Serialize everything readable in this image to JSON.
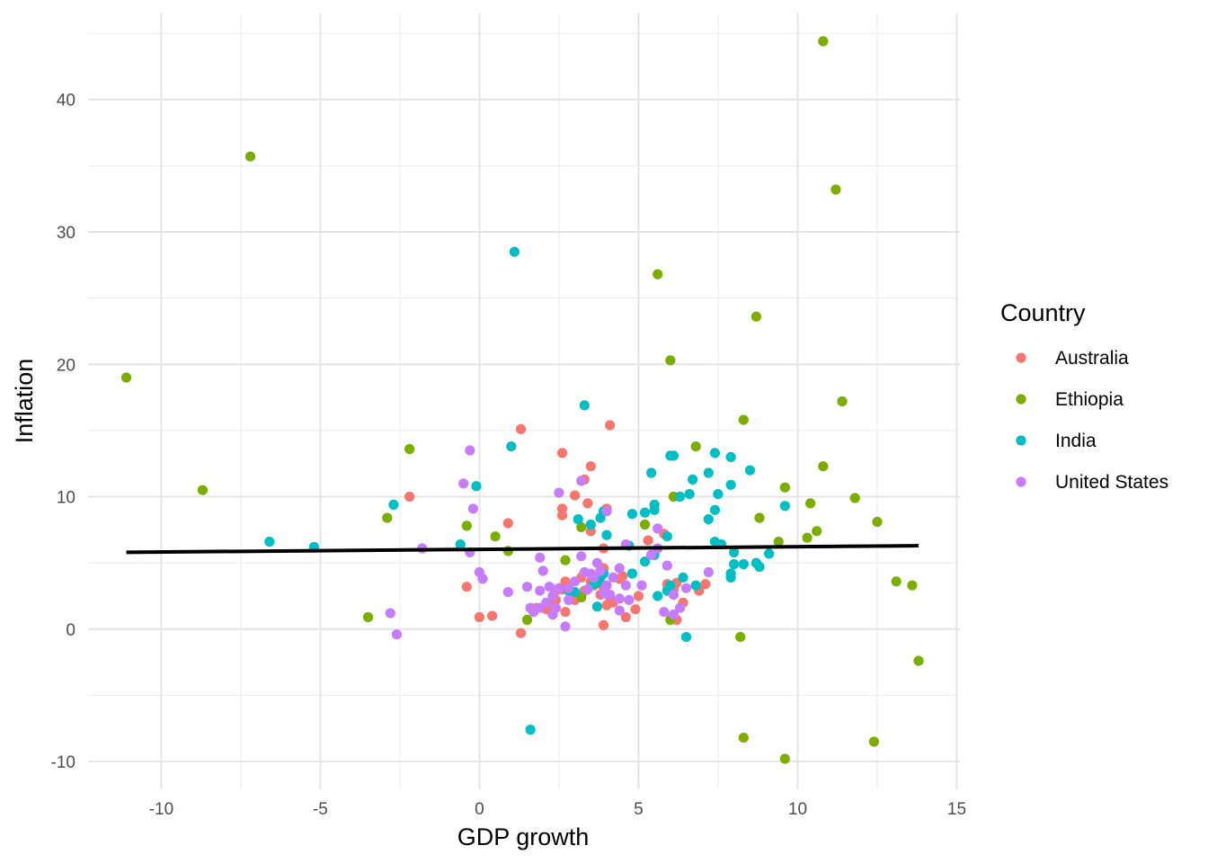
{
  "chart_data": {
    "type": "scatter",
    "xlabel": "GDP growth",
    "ylabel": "Inflation",
    "xlim": [
      -12.3,
      15.1
    ],
    "ylim": [
      -12.1,
      46.5
    ],
    "x_ticks": [
      -10,
      -5,
      0,
      5,
      10,
      15
    ],
    "x_tick_labels": [
      "-10",
      "-5",
      "0",
      "5",
      "10",
      "15"
    ],
    "y_ticks": [
      -10,
      0,
      10,
      20,
      30,
      40
    ],
    "y_tick_labels": [
      "-10",
      "0",
      "10",
      "20",
      "30",
      "40"
    ],
    "x_minor_grid": [
      -7.5,
      -2.5,
      2.5,
      7.5,
      12.5
    ],
    "y_minor_grid": [
      -5,
      5,
      15,
      25,
      35,
      45
    ],
    "grid": true,
    "legend": {
      "title": "Country",
      "placement": "right",
      "entries": [
        "Australia",
        "Ethiopia",
        "India",
        "United States"
      ]
    },
    "trend_line": {
      "color": "#000000",
      "from": [
        -11.1,
        5.8
      ],
      "to": [
        13.8,
        6.3
      ]
    },
    "series": [
      {
        "name": "Australia",
        "color": "#F8766D",
        "points": [
          [
            1.3,
            15.1
          ],
          [
            4.1,
            15.4
          ],
          [
            2.6,
            13.3
          ],
          [
            3.5,
            12.3
          ],
          [
            3.3,
            11.3
          ],
          [
            3.0,
            10.1
          ],
          [
            -2.2,
            10.0
          ],
          [
            4.0,
            9.1
          ],
          [
            3.4,
            9.5
          ],
          [
            2.6,
            9.1
          ],
          [
            2.6,
            8.6
          ],
          [
            0.9,
            8.0
          ],
          [
            3.5,
            7.4
          ],
          [
            5.8,
            7.2
          ],
          [
            5.3,
            6.7
          ],
          [
            3.9,
            6.1
          ],
          [
            -0.4,
            3.2
          ],
          [
            0.4,
            1.0
          ],
          [
            0.0,
            0.9
          ],
          [
            1.3,
            -0.3
          ],
          [
            1.8,
            1.6
          ],
          [
            2.1,
            1.5
          ],
          [
            2.4,
            2.2
          ],
          [
            2.4,
            2.9
          ],
          [
            2.6,
            3.0
          ],
          [
            2.7,
            3.6
          ],
          [
            2.8,
            3.4
          ],
          [
            2.9,
            2.7
          ],
          [
            2.7,
            1.3
          ],
          [
            3.0,
            2.2
          ],
          [
            3.3,
            2.9
          ],
          [
            3.5,
            3.6
          ],
          [
            3.6,
            3.3
          ],
          [
            3.7,
            4.0
          ],
          [
            3.8,
            2.6
          ],
          [
            3.9,
            3.2
          ],
          [
            3.9,
            4.6
          ],
          [
            4.0,
            1.8
          ],
          [
            4.1,
            2.4
          ],
          [
            4.4,
            3.8
          ],
          [
            4.5,
            4.0
          ],
          [
            4.6,
            0.9
          ],
          [
            4.9,
            1.5
          ],
          [
            5.0,
            2.5
          ],
          [
            5.9,
            3.4
          ],
          [
            6.1,
            3.0
          ],
          [
            6.2,
            0.7
          ],
          [
            6.2,
            3.5
          ],
          [
            6.4,
            2.0
          ],
          [
            6.9,
            2.9
          ],
          [
            7.1,
            3.4
          ],
          [
            3.9,
            0.3
          ],
          [
            2.3,
            1.8
          ],
          [
            4.2,
            2.0
          ],
          [
            3.2,
            3.9
          ]
        ]
      },
      {
        "name": "Ethiopia",
        "color": "#7CAE00",
        "points": [
          [
            10.8,
            44.4
          ],
          [
            -7.2,
            35.7
          ],
          [
            11.2,
            33.2
          ],
          [
            5.6,
            26.8
          ],
          [
            8.7,
            23.6
          ],
          [
            6.0,
            20.3
          ],
          [
            -11.1,
            19.0
          ],
          [
            11.4,
            17.2
          ],
          [
            8.3,
            15.8
          ],
          [
            6.8,
            13.8
          ],
          [
            -2.2,
            13.6
          ],
          [
            10.8,
            12.3
          ],
          [
            9.6,
            10.7
          ],
          [
            -8.7,
            10.5
          ],
          [
            6.1,
            10.0
          ],
          [
            11.8,
            9.9
          ],
          [
            10.4,
            9.5
          ],
          [
            8.8,
            8.4
          ],
          [
            -2.9,
            8.4
          ],
          [
            12.5,
            8.1
          ],
          [
            5.2,
            7.9
          ],
          [
            -0.4,
            7.8
          ],
          [
            3.2,
            7.7
          ],
          [
            10.6,
            7.4
          ],
          [
            0.5,
            7.0
          ],
          [
            10.3,
            6.9
          ],
          [
            9.4,
            6.6
          ],
          [
            0.9,
            5.9
          ],
          [
            2.7,
            5.2
          ],
          [
            13.1,
            3.6
          ],
          [
            13.6,
            3.3
          ],
          [
            3.2,
            2.4
          ],
          [
            -3.5,
            0.9
          ],
          [
            1.5,
            0.7
          ],
          [
            6.0,
            0.7
          ],
          [
            8.2,
            -0.6
          ],
          [
            13.8,
            -2.4
          ],
          [
            8.3,
            -8.2
          ],
          [
            12.4,
            -8.5
          ],
          [
            9.6,
            -9.8
          ]
        ]
      },
      {
        "name": "India",
        "color": "#00BFC4",
        "points": [
          [
            1.1,
            28.5
          ],
          [
            3.3,
            16.9
          ],
          [
            1.0,
            13.8
          ],
          [
            7.4,
            13.3
          ],
          [
            6.1,
            13.1
          ],
          [
            7.9,
            13.0
          ],
          [
            6.0,
            13.1
          ],
          [
            8.5,
            12.0
          ],
          [
            5.4,
            11.8
          ],
          [
            7.2,
            11.8
          ],
          [
            6.7,
            11.3
          ],
          [
            7.9,
            10.9
          ],
          [
            -0.1,
            10.8
          ],
          [
            7.5,
            10.2
          ],
          [
            6.6,
            10.2
          ],
          [
            6.3,
            10.0
          ],
          [
            -2.7,
            9.4
          ],
          [
            9.6,
            9.3
          ],
          [
            5.5,
            9.4
          ],
          [
            5.5,
            9.0
          ],
          [
            7.4,
            9.0
          ],
          [
            4.8,
            8.7
          ],
          [
            5.2,
            8.8
          ],
          [
            3.9,
            8.9
          ],
          [
            3.8,
            8.4
          ],
          [
            3.1,
            8.3
          ],
          [
            7.2,
            8.3
          ],
          [
            3.5,
            7.9
          ],
          [
            4.0,
            7.1
          ],
          [
            5.9,
            7.0
          ],
          [
            -6.6,
            6.6
          ],
          [
            7.4,
            6.6
          ],
          [
            7.6,
            6.4
          ],
          [
            -0.6,
            6.4
          ],
          [
            -5.2,
            6.2
          ],
          [
            4.7,
            6.3
          ],
          [
            8.0,
            5.8
          ],
          [
            9.1,
            5.7
          ],
          [
            5.5,
            5.6
          ],
          [
            5.2,
            5.1
          ],
          [
            8.7,
            5.0
          ],
          [
            8.0,
            4.9
          ],
          [
            8.8,
            4.7
          ],
          [
            8.3,
            4.9
          ],
          [
            3.9,
            4.2
          ],
          [
            4.8,
            4.2
          ],
          [
            7.9,
            3.9
          ],
          [
            7.9,
            4.2
          ],
          [
            3.8,
            3.9
          ],
          [
            3.7,
            3.5
          ],
          [
            6.4,
            3.9
          ],
          [
            6.0,
            3.3
          ],
          [
            6.8,
            3.3
          ],
          [
            3.0,
            2.8
          ],
          [
            5.6,
            2.5
          ],
          [
            3.7,
            1.7
          ],
          [
            5.9,
            2.9
          ],
          [
            6.5,
            -0.6
          ],
          [
            1.6,
            -7.6
          ],
          [
            3.6,
            3.4
          ],
          [
            2.8,
            2.9
          ]
        ]
      },
      {
        "name": "United States",
        "color": "#C77CFF",
        "points": [
          [
            -0.3,
            13.5
          ],
          [
            3.2,
            11.2
          ],
          [
            -0.5,
            11.0
          ],
          [
            2.5,
            10.3
          ],
          [
            -0.2,
            9.1
          ],
          [
            4.0,
            8.9
          ],
          [
            5.6,
            7.6
          ],
          [
            4.6,
            6.4
          ],
          [
            5.6,
            6.1
          ],
          [
            -1.8,
            6.1
          ],
          [
            -0.3,
            5.8
          ],
          [
            1.9,
            5.4
          ],
          [
            3.2,
            5.5
          ],
          [
            3.7,
            5.0
          ],
          [
            4.4,
            4.6
          ],
          [
            5.4,
            5.6
          ],
          [
            2.0,
            4.4
          ],
          [
            3.3,
            4.3
          ],
          [
            3.5,
            4.2
          ],
          [
            3.8,
            4.4
          ],
          [
            4.2,
            3.9
          ],
          [
            4.0,
            3.3
          ],
          [
            3.4,
            3.0
          ],
          [
            2.5,
            3.1
          ],
          [
            2.8,
            3.1
          ],
          [
            2.3,
            2.5
          ],
          [
            1.9,
            2.9
          ],
          [
            1.5,
            3.2
          ],
          [
            0.9,
            2.8
          ],
          [
            0.0,
            4.3
          ],
          [
            0.1,
            3.8
          ],
          [
            4.6,
            3.3
          ],
          [
            5.1,
            3.3
          ],
          [
            6.1,
            2.6
          ],
          [
            6.5,
            3.1
          ],
          [
            5.9,
            4.8
          ],
          [
            7.2,
            4.3
          ],
          [
            4.7,
            2.2
          ],
          [
            4.4,
            2.3
          ],
          [
            4.4,
            1.4
          ],
          [
            2.1,
            2.0
          ],
          [
            2.4,
            1.6
          ],
          [
            2.8,
            2.2
          ],
          [
            1.9,
            1.6
          ],
          [
            2.3,
            1.1
          ],
          [
            1.6,
            1.6
          ],
          [
            1.7,
            1.3
          ],
          [
            2.7,
            0.2
          ],
          [
            5.8,
            1.3
          ],
          [
            6.1,
            1.1
          ],
          [
            6.3,
            1.6
          ],
          [
            -2.8,
            1.2
          ],
          [
            -2.6,
            -0.4
          ],
          [
            3.9,
            2.7
          ],
          [
            4.1,
            2.6
          ],
          [
            3.0,
            3.6
          ],
          [
            3.6,
            3.9
          ],
          [
            2.2,
            3.2
          ]
        ]
      }
    ]
  }
}
